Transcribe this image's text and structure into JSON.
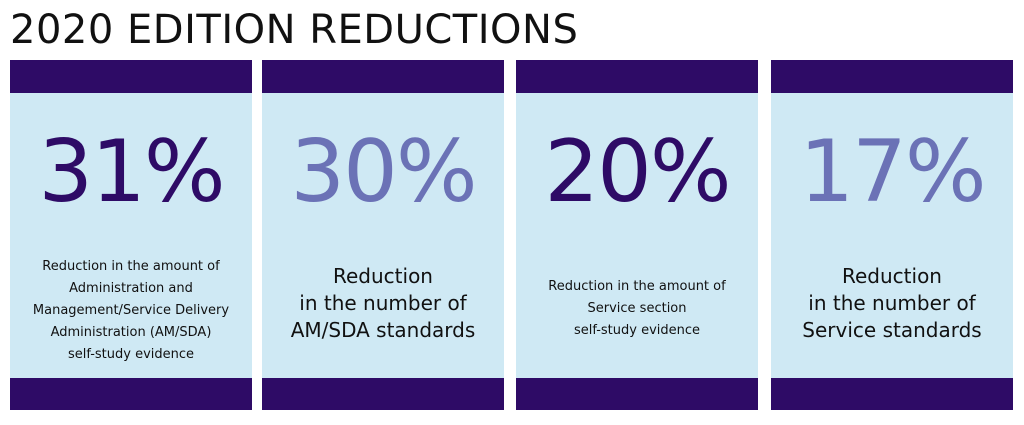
{
  "title": "2020 EDITION REDUCTIONS",
  "colors": {
    "bar": "#2e0b66",
    "card_background": "#cfe9f4",
    "dark_percent": "#2e0b66",
    "light_percent": "#6b72b6"
  },
  "cards": [
    {
      "percent": "31%",
      "description": "Reduction in the amount of\nAdministration and\nManagement/Service Delivery\nAdministration (AM/SDA)\nself-study evidence"
    },
    {
      "percent": "30%",
      "description": "Reduction\nin the number of\nAM/SDA standards"
    },
    {
      "percent": "20%",
      "description": "Reduction in the amount of\nService section\nself-study evidence"
    },
    {
      "percent": "17%",
      "description": "Reduction\nin the number of\nService standards"
    }
  ]
}
